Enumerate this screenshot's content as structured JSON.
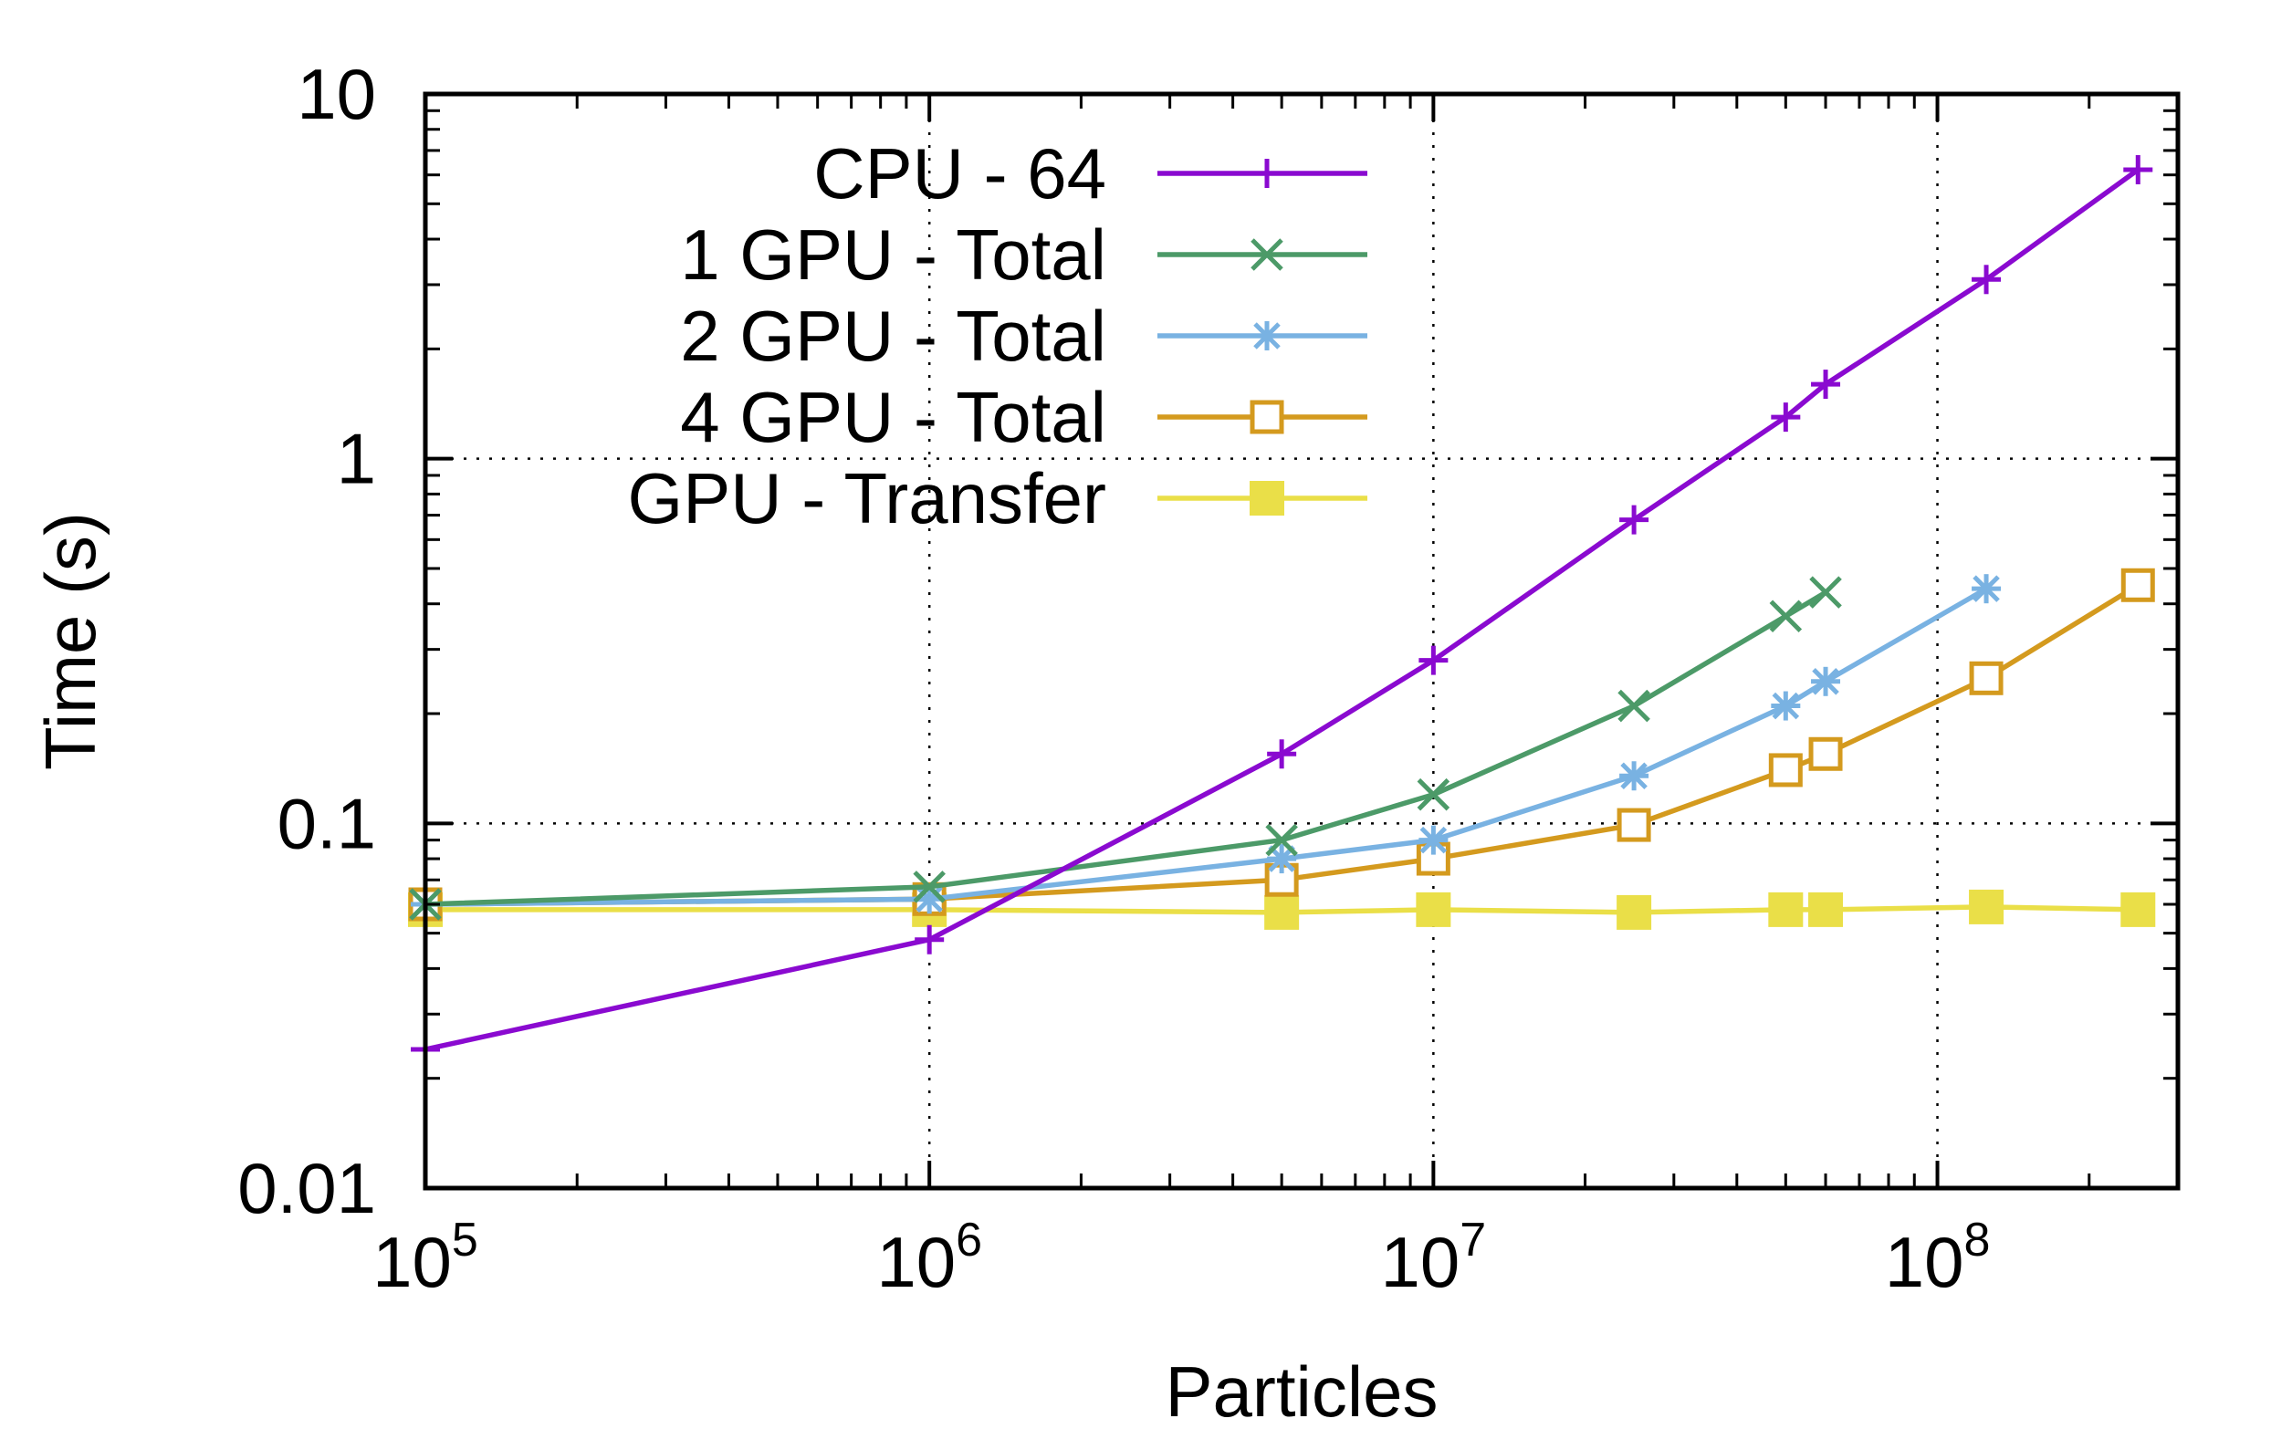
{
  "chart_data": {
    "type": "line",
    "title": "",
    "xlabel": "Particles",
    "ylabel": "Time (s)",
    "xscale": "log",
    "yscale": "log",
    "xlim": [
      100000,
      300000000
    ],
    "ylim": [
      0.01,
      10
    ],
    "grid": true,
    "legend_position": "top-left",
    "x_ticks": [
      {
        "value": 100000,
        "base": "10",
        "exp": "5"
      },
      {
        "value": 1000000,
        "base": "10",
        "exp": "6"
      },
      {
        "value": 10000000,
        "base": "10",
        "exp": "7"
      },
      {
        "value": 100000000,
        "base": "10",
        "exp": "8"
      }
    ],
    "y_ticks": [
      {
        "value": 0.01,
        "label": "0.01"
      },
      {
        "value": 0.1,
        "label": "0.1"
      },
      {
        "value": 1,
        "label": "1"
      },
      {
        "value": 10,
        "label": "10"
      }
    ],
    "series": [
      {
        "name": "CPU - 64",
        "color": "#8a0ad0",
        "marker": "plus",
        "x": [
          100000,
          1000000,
          5000000,
          10000000,
          25000000,
          50000000,
          60000000,
          125000000,
          250000000
        ],
        "y": [
          0.024,
          0.048,
          0.155,
          0.28,
          0.68,
          1.3,
          1.6,
          3.1,
          6.2
        ]
      },
      {
        "name": "1 GPU - Total",
        "color": "#4c9a68",
        "marker": "cross",
        "x": [
          100000,
          1000000,
          5000000,
          10000000,
          25000000,
          50000000,
          60000000
        ],
        "y": [
          0.06,
          0.067,
          0.09,
          0.12,
          0.21,
          0.37,
          0.43
        ]
      },
      {
        "name": "2 GPU - Total",
        "color": "#79b2e2",
        "marker": "asterisk",
        "x": [
          100000,
          1000000,
          5000000,
          10000000,
          25000000,
          50000000,
          60000000,
          125000000
        ],
        "y": [
          0.06,
          0.062,
          0.08,
          0.09,
          0.135,
          0.21,
          0.245,
          0.44
        ]
      },
      {
        "name": "4 GPU - Total",
        "color": "#d49a1e",
        "marker": "open-square",
        "x": [
          100000,
          1000000,
          5000000,
          10000000,
          25000000,
          50000000,
          60000000,
          125000000,
          250000000
        ],
        "y": [
          0.06,
          0.062,
          0.07,
          0.08,
          0.099,
          0.14,
          0.155,
          0.25,
          0.45
        ]
      },
      {
        "name": "GPU - Transfer",
        "color": "#eadf48",
        "marker": "filled-square",
        "x": [
          100000,
          1000000,
          5000000,
          10000000,
          25000000,
          50000000,
          60000000,
          125000000,
          250000000
        ],
        "y": [
          0.058,
          0.058,
          0.057,
          0.058,
          0.057,
          0.058,
          0.058,
          0.059,
          0.058
        ]
      }
    ]
  }
}
